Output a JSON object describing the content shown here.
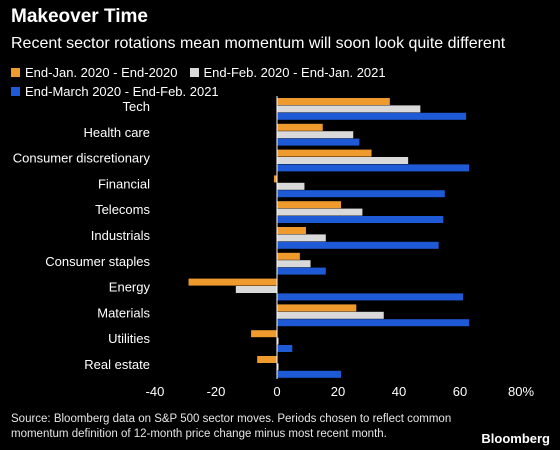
{
  "title": "Makeover Time",
  "subtitle": "Recent sector rotations mean momentum will soon look quite different",
  "colors": {
    "background": "#000000",
    "series_1": "#ef9a2d",
    "series_2": "#d9d9d9",
    "series_3": "#1f5ad6",
    "axis_line": "#ffffff",
    "tick_text": "#ffffff"
  },
  "chart_data": {
    "type": "bar",
    "orientation": "horizontal",
    "title": "Makeover Time",
    "subtitle": "Recent sector rotations mean momentum will soon look quite different",
    "categories": [
      "Tech",
      "Health care",
      "Consumer discretionary",
      "Financial",
      "Telecoms",
      "Industrials",
      "Consumer staples",
      "Energy",
      "Materials",
      "Utilities",
      "Real estate"
    ],
    "series": [
      {
        "name": "End-Jan. 2020 - End-2020",
        "values": [
          37,
          15,
          31,
          -1,
          21,
          9.5,
          7.5,
          -29,
          26,
          -8.5,
          -6.5
        ]
      },
      {
        "name": "End-Feb. 2020 - End-Jan. 2021",
        "values": [
          47,
          25,
          43,
          9,
          28,
          16,
          11,
          -13.5,
          35,
          0.5,
          0.5
        ]
      },
      {
        "name": "End-March 2020 - End-Feb. 2021",
        "values": [
          62,
          27,
          63,
          55,
          54.5,
          53,
          16,
          61,
          63,
          5,
          21
        ]
      }
    ],
    "xlim": [
      -40,
      80
    ],
    "xticks": [
      -40,
      -20,
      0,
      20,
      40,
      60,
      80
    ],
    "xtick_labels": [
      "-40",
      "-20",
      "0",
      "20",
      "40",
      "60",
      "80%"
    ],
    "xlabel": "",
    "ylabel": "",
    "grid": false,
    "legend_position": "top-left"
  },
  "source": "Source: Bloomberg data on S&P 500 sector moves. Periods chosen to reflect common momentum definition of 12-month price change minus most recent month.",
  "brand": "Bloomberg"
}
